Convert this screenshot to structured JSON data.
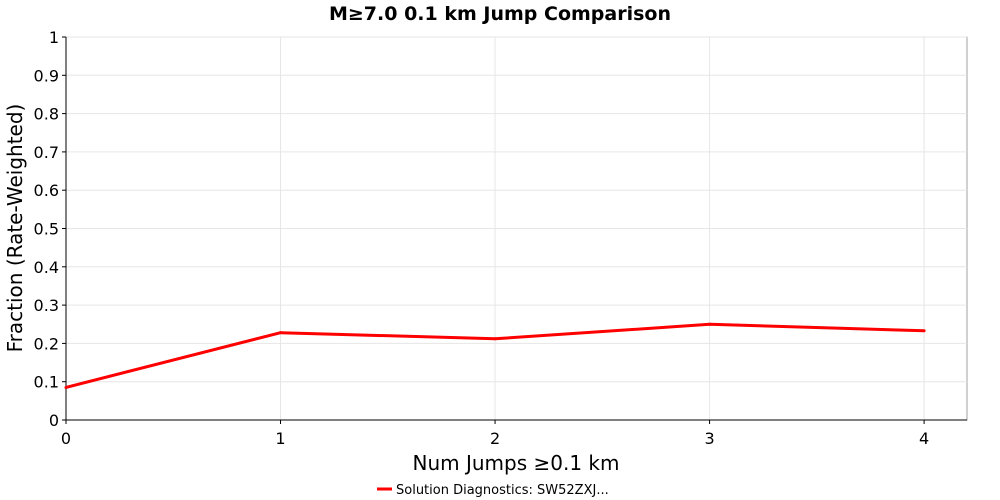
{
  "chart_data": {
    "type": "line",
    "title": "M≥7.0 0.1 km Jump Comparison",
    "xlabel": "Num Jumps ≥0.1 km",
    "ylabel": "Fraction (Rate-Weighted)",
    "xlim": [
      0,
      4.2
    ],
    "ylim": [
      0,
      1
    ],
    "x_ticks": [
      0,
      1,
      2,
      3,
      4
    ],
    "y_ticks": [
      0,
      0.1,
      0.2,
      0.3,
      0.4,
      0.5,
      0.6,
      0.7,
      0.8,
      0.9,
      1
    ],
    "x_tick_labels": [
      "0",
      "1",
      "2",
      "3",
      "4"
    ],
    "y_tick_labels": [
      "0",
      "0.1",
      "0.2",
      "0.3",
      "0.4",
      "0.5",
      "0.6",
      "0.7",
      "0.8",
      "0.9",
      "1"
    ],
    "grid": true,
    "legend_position": "bottom-center",
    "series": [
      {
        "name": "Solution Diagnostics: SW52ZXJ...",
        "color": "#ff0000",
        "x": [
          0,
          1,
          2,
          3,
          4
        ],
        "values": [
          0.085,
          0.228,
          0.212,
          0.25,
          0.233
        ]
      }
    ]
  }
}
